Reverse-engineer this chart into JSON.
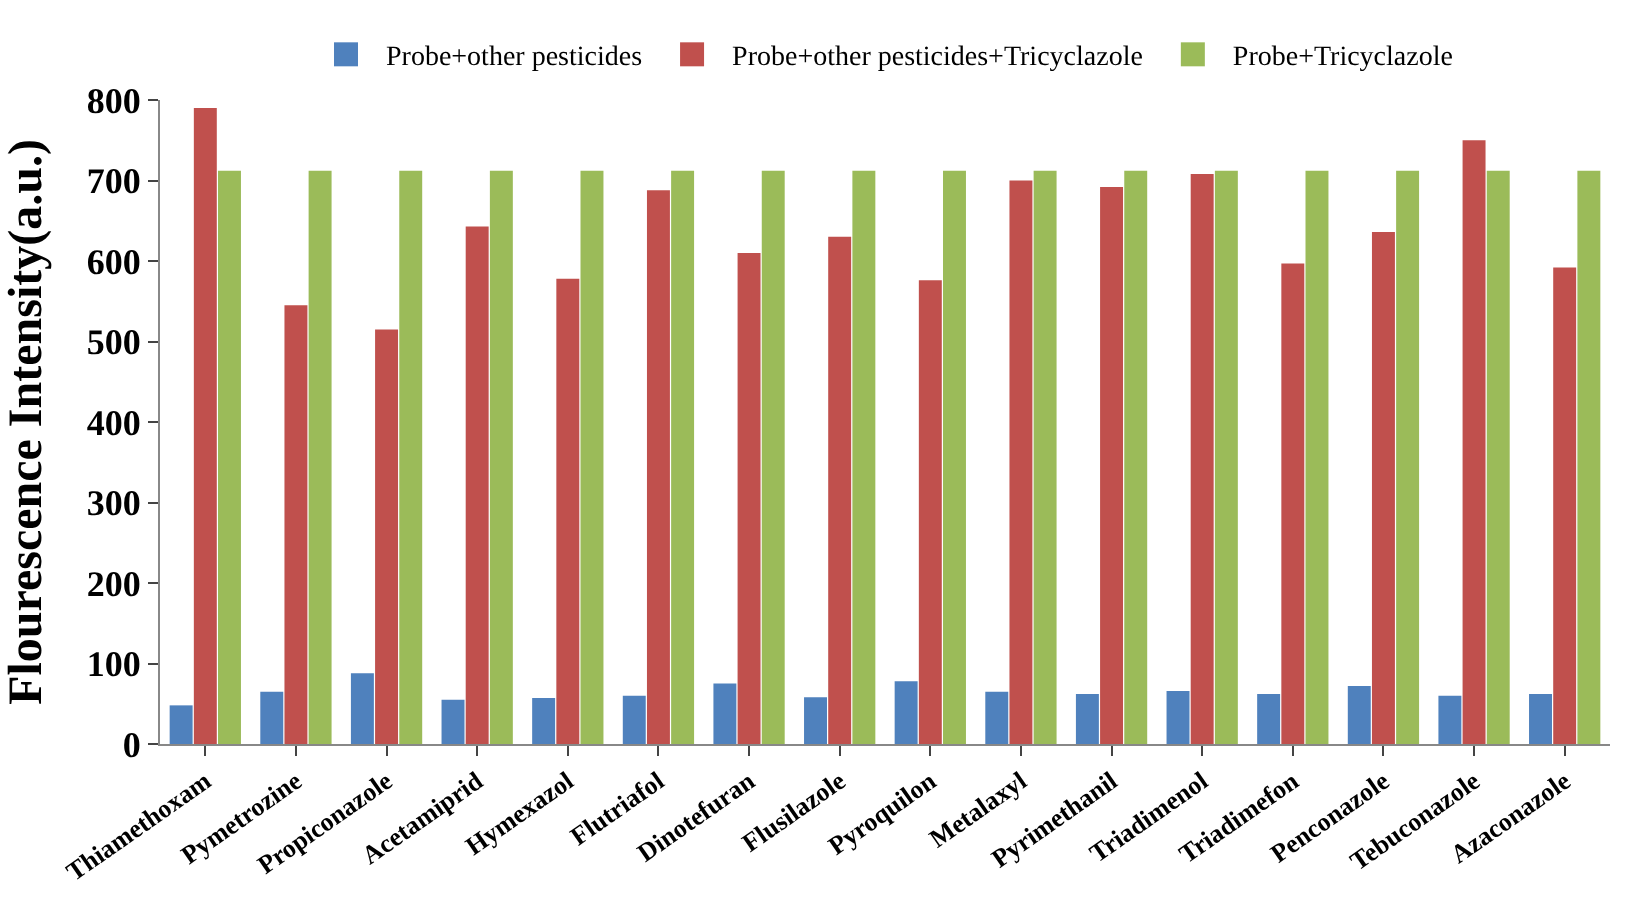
{
  "chart_data": {
    "type": "bar",
    "ylabel": "Flourescence Intensity(a.u.)",
    "categories": [
      "Thiamethoxam",
      "Pymetrozine",
      "Propiconazole",
      "Acetamiprid",
      "Hymexazol",
      "Flutriafol",
      "Dinotefuran",
      "Flusilazole",
      "Pyroquilon",
      "Metalaxyl",
      "Pyrimethanil",
      "Triadimenol",
      "Triadimefon",
      "Penconazole",
      "Tebuconazole",
      "Azaconazole"
    ],
    "series": [
      {
        "name": "Probe+other pesticides",
        "color": "#4f81bd",
        "values": [
          48,
          65,
          88,
          55,
          57,
          60,
          75,
          58,
          78,
          65,
          62,
          66,
          62,
          72,
          60,
          62
        ]
      },
      {
        "name": "Probe+other pesticides+Tricyclazole",
        "color": "#c0504d",
        "values": [
          790,
          545,
          515,
          643,
          578,
          688,
          610,
          630,
          576,
          700,
          692,
          708,
          597,
          636,
          750,
          592
        ]
      },
      {
        "name": "Probe+Tricyclazole",
        "color": "#9bbb59",
        "values": [
          712,
          712,
          712,
          712,
          712,
          712,
          712,
          712,
          712,
          712,
          712,
          712,
          712,
          712,
          712,
          712
        ]
      }
    ],
    "ylim": [
      0,
      800
    ],
    "yticks": [
      0,
      100,
      200,
      300,
      400,
      500,
      600,
      700,
      800
    ],
    "grid": false,
    "legend": "top"
  }
}
